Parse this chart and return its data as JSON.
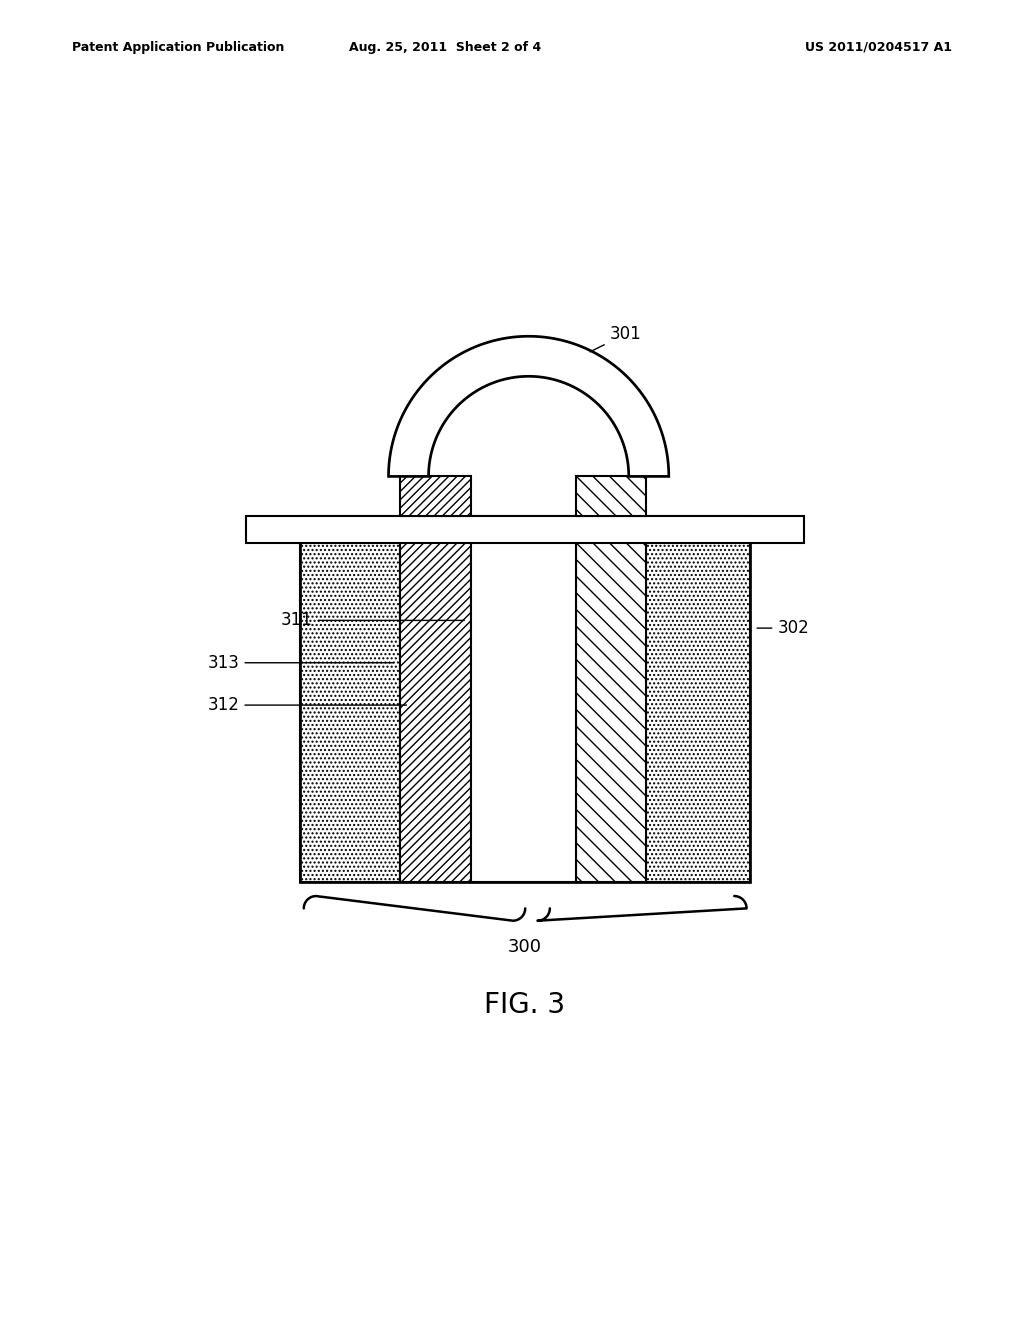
{
  "bg_color": "#ffffff",
  "line_color": "#000000",
  "header_left": "Patent Application Publication",
  "header_mid": "Aug. 25, 2011  Sheet 2 of 4",
  "header_right": "US 2011/0204517 A1",
  "fig_label": "FIG. 3",
  "label_301": "301",
  "label_302": "302",
  "label_300": "300",
  "label_311": "311",
  "label_312": "312",
  "label_313": "313"
}
